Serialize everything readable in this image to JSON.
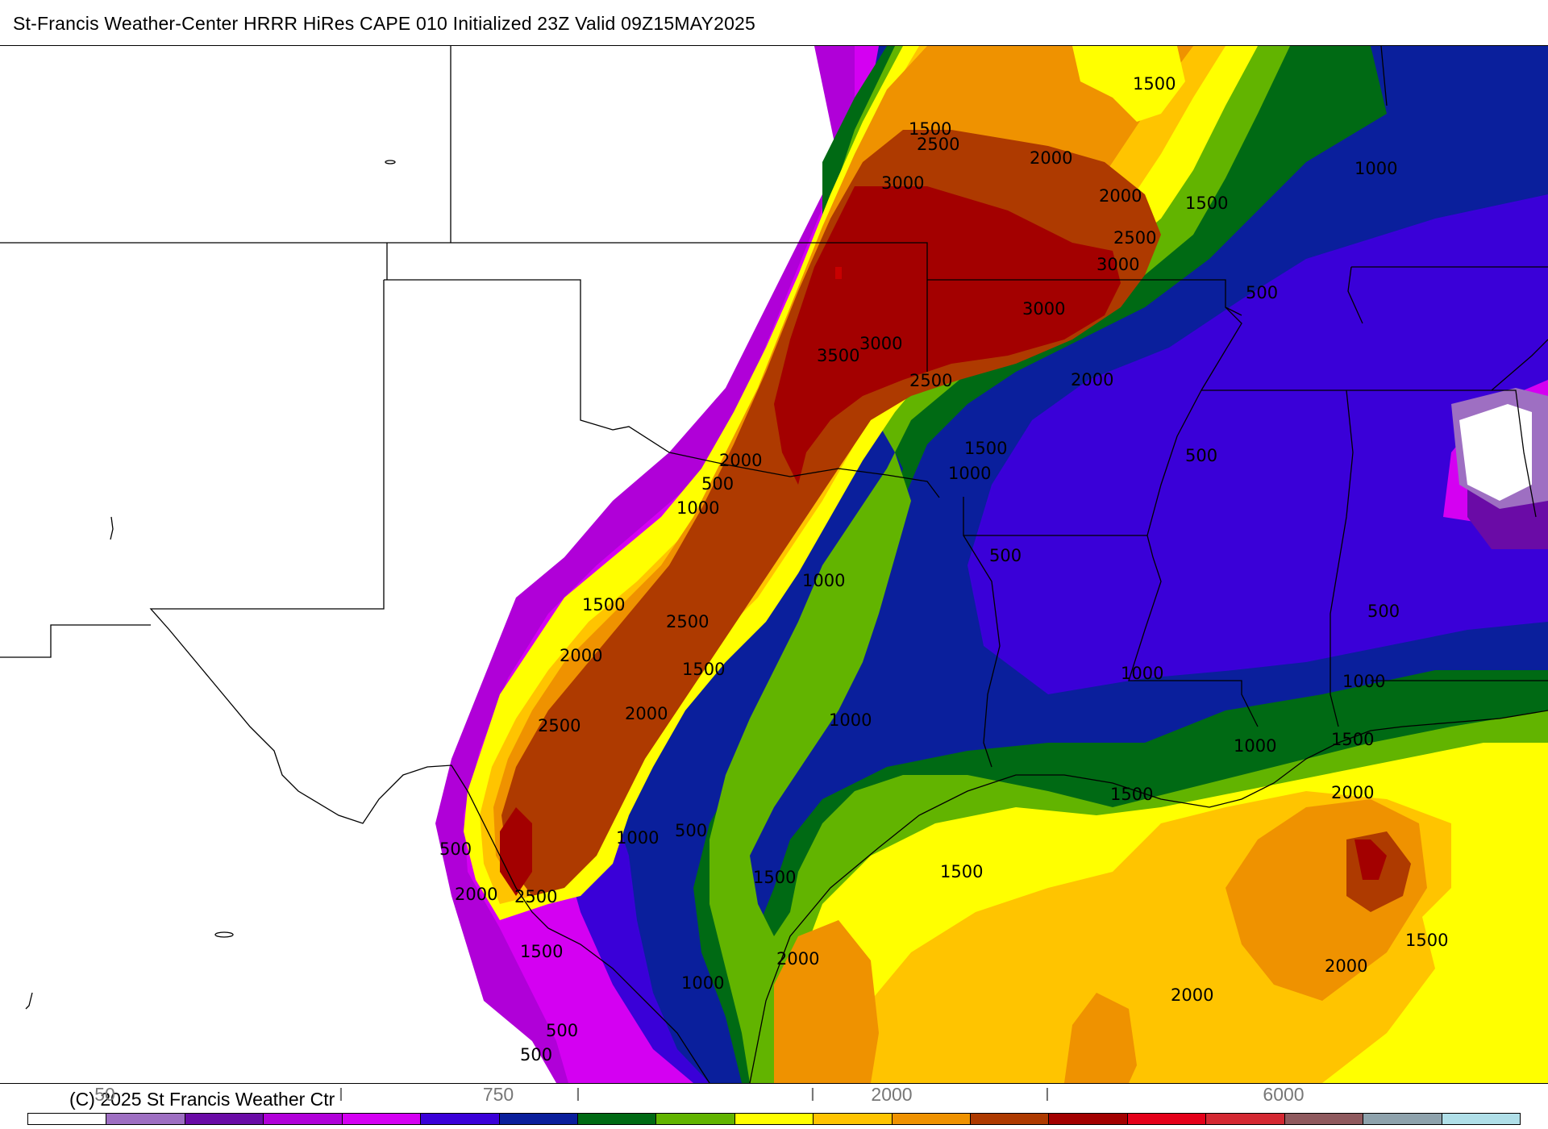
{
  "header": {
    "title": "St-Francis Weather-Center HRRR HiRes CAPE  010 Initialized  23Z Valid 09Z15MAY2025"
  },
  "footer": {
    "copyright": "(C) 2025 St Francis Weather Ctr"
  },
  "legend": {
    "tick_labels": [
      "50",
      "I",
      "750",
      "I",
      "I",
      "2000",
      "I",
      "6000"
    ],
    "colors": [
      "#ffffff",
      "#9e6fc2",
      "#6a0ba6",
      "#b000d8",
      "#d400f2",
      "#3a00d8",
      "#0a1f9c",
      "#006a14",
      "#62b400",
      "#ffff00",
      "#ffc400",
      "#ef9200",
      "#ae3a00",
      "#a30000",
      "#e5001a",
      "#d42832",
      "#8f5a5e",
      "#8ea2ac",
      "#b0dfe8"
    ]
  },
  "map": {
    "layer_colors": {
      "c50": "#9e6fc2",
      "c100": "#6a0ba6",
      "c250": "#b000d8",
      "c500": "#d400f2",
      "c750": "#3a00d8",
      "c1000": "#0a1f9c",
      "c1250": "#006a14",
      "c1500": "#62b400",
      "c1750": "#ffff00",
      "c2000": "#ffc400",
      "c2500": "#ef9200",
      "c3000": "#ae3a00",
      "c3500": "#a30000",
      "c4000": "#c80000"
    },
    "contour_labels": [
      "1500",
      "1500",
      "2500",
      "2000",
      "2000",
      "1500",
      "1000",
      "3000",
      "2500",
      "3000",
      "3000",
      "500",
      "3000",
      "3500",
      "2500",
      "2000",
      "1500",
      "500",
      "1000",
      "2000",
      "500",
      "1000",
      "500",
      "1000",
      "500",
      "1500",
      "2500",
      "2000",
      "1500",
      "1000",
      "2000",
      "1000",
      "1000",
      "2500",
      "1000",
      "1500",
      "500",
      "1000",
      "2000",
      "1500",
      "500",
      "2000",
      "2500",
      "1500",
      "1500",
      "1500",
      "2000",
      "2000",
      "2000",
      "1000",
      "1500",
      "500",
      "500"
    ]
  }
}
